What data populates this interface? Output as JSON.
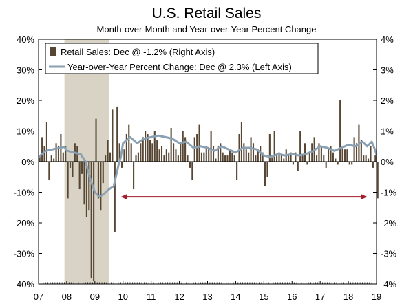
{
  "chart_data": {
    "type": "bar+line",
    "title": "U.S. Retail Sales",
    "subtitle": "Month-over-Month and Year-over-Year Percent Change",
    "x_tick_labels": [
      "07",
      "08",
      "09",
      "10",
      "11",
      "12",
      "13",
      "14",
      "15",
      "16",
      "17",
      "18",
      "19"
    ],
    "x_range": [
      2007.0,
      2019.0
    ],
    "left_axis": {
      "ticks": [
        "40%",
        "30%",
        "20%",
        "10%",
        "0%",
        "-10%",
        "-20%",
        "-30%",
        "-40%"
      ],
      "range": [
        -40,
        40
      ],
      "unit": "%"
    },
    "right_axis": {
      "ticks": [
        "4%",
        "3%",
        "2%",
        "1%",
        "0%",
        "-1%",
        "-2%",
        "-3%",
        "-4%"
      ],
      "range": [
        -4,
        4
      ],
      "unit": "%"
    },
    "recession_shading": [
      2007.92,
      2009.5
    ],
    "annotation_arrow": {
      "x_start": 2009.92,
      "x_end": 2018.67,
      "y_left_axis": -11.5,
      "color": "#a3202e"
    },
    "series": [
      {
        "name": "Retail Sales: Dec @ -1.2% (Right Axis)",
        "kind": "bar",
        "axis": "right",
        "color": "#574633",
        "start": 2007.0,
        "step_months": 1,
        "values": [
          0.2,
          0.8,
          0.5,
          1.3,
          -0.6,
          0.2,
          0.1,
          0.6,
          0.5,
          0.9,
          0.3,
          0.5,
          -1.2,
          -0.2,
          -0.5,
          0.6,
          0.5,
          -0.9,
          -0.4,
          -1.4,
          -1.8,
          -1.6,
          -3.8,
          -3.9,
          1.4,
          -1.2,
          -1.6,
          -0.7,
          0.2,
          0.7,
          0.3,
          1.7,
          -2.3,
          1.8,
          0.6,
          -0.2,
          0.4,
          0.9,
          1.2,
          0.6,
          -0.9,
          0.2,
          0.3,
          0.6,
          0.8,
          1.0,
          0.9,
          0.7,
          0.6,
          1.0,
          0.7,
          0.4,
          0.5,
          0.2,
          0.4,
          0.3,
          1.1,
          0.6,
          0.4,
          0.2,
          0.6,
          1.0,
          0.8,
          0.2,
          -0.2,
          -0.6,
          0.8,
          0.9,
          1.2,
          0.3,
          0.3,
          0.5,
          0.4,
          1.0,
          0.5,
          0.1,
          0.5,
          0.6,
          0.3,
          0.2,
          0.2,
          0.4,
          0.3,
          0.2,
          -0.6,
          0.9,
          1.3,
          0.6,
          0.4,
          0.3,
          0.8,
          0.6,
          0.2,
          0.4,
          0.5,
          0.3,
          -0.8,
          -0.5,
          0.9,
          0.2,
          1.0,
          0.2,
          0.3,
          0.2,
          0.1,
          0.4,
          0.2,
          0.3,
          -0.1,
          0.3,
          -0.3,
          1.0,
          0.2,
          0.6,
          -0.1,
          0.3,
          0.6,
          0.8,
          0.2,
          0.6,
          0.5,
          0.2,
          -0.2,
          0.4,
          0.5,
          0.3,
          0.1,
          -0.1,
          2.0,
          0.5,
          0.4,
          0.4,
          -0.1,
          -0.1,
          0.8,
          0.6,
          1.2,
          0.7,
          0.2,
          0.2,
          0.1,
          0.5,
          -0.2,
          0.2,
          -1.2
        ]
      },
      {
        "name": "Year-over-Year Percent Change: Dec @ 2.3% (Left Axis)",
        "kind": "line",
        "axis": "left",
        "color": "#8aa0b3",
        "points": [
          [
            2007.0,
            1.5
          ],
          [
            2007.25,
            3.5
          ],
          [
            2007.5,
            4.0
          ],
          [
            2007.75,
            4.5
          ],
          [
            2007.92,
            4.8
          ],
          [
            2008.0,
            3.6
          ],
          [
            2008.25,
            3.0
          ],
          [
            2008.5,
            2.4
          ],
          [
            2008.67,
            0.0
          ],
          [
            2008.83,
            -5.5
          ],
          [
            2009.0,
            -10.0
          ],
          [
            2009.17,
            -11.5
          ],
          [
            2009.33,
            -10.5
          ],
          [
            2009.5,
            -9.0
          ],
          [
            2009.67,
            -8.0
          ],
          [
            2009.83,
            -1.5
          ],
          [
            2009.92,
            1.5
          ],
          [
            2010.0,
            6.0
          ],
          [
            2010.25,
            8.0
          ],
          [
            2010.5,
            6.0
          ],
          [
            2010.75,
            7.5
          ],
          [
            2011.0,
            8.0
          ],
          [
            2011.25,
            8.5
          ],
          [
            2011.5,
            8.0
          ],
          [
            2011.75,
            7.5
          ],
          [
            2012.0,
            6.0
          ],
          [
            2012.25,
            6.5
          ],
          [
            2012.5,
            4.5
          ],
          [
            2012.75,
            5.0
          ],
          [
            2013.0,
            4.5
          ],
          [
            2013.25,
            3.5
          ],
          [
            2013.5,
            5.0
          ],
          [
            2013.75,
            4.0
          ],
          [
            2014.0,
            3.0
          ],
          [
            2014.25,
            4.5
          ],
          [
            2014.5,
            4.5
          ],
          [
            2014.75,
            4.0
          ],
          [
            2015.0,
            2.0
          ],
          [
            2015.25,
            1.5
          ],
          [
            2015.5,
            2.5
          ],
          [
            2015.75,
            2.0
          ],
          [
            2016.0,
            2.5
          ],
          [
            2016.25,
            2.0
          ],
          [
            2016.5,
            2.5
          ],
          [
            2016.75,
            3.5
          ],
          [
            2017.0,
            5.0
          ],
          [
            2017.25,
            4.5
          ],
          [
            2017.5,
            3.5
          ],
          [
            2017.75,
            4.5
          ],
          [
            2018.0,
            5.5
          ],
          [
            2018.25,
            5.0
          ],
          [
            2018.5,
            6.5
          ],
          [
            2018.67,
            5.0
          ],
          [
            2018.83,
            6.5
          ],
          [
            2018.92,
            4.5
          ],
          [
            2019.0,
            2.3
          ]
        ]
      }
    ],
    "legend_position": "top-left",
    "grid": false
  }
}
